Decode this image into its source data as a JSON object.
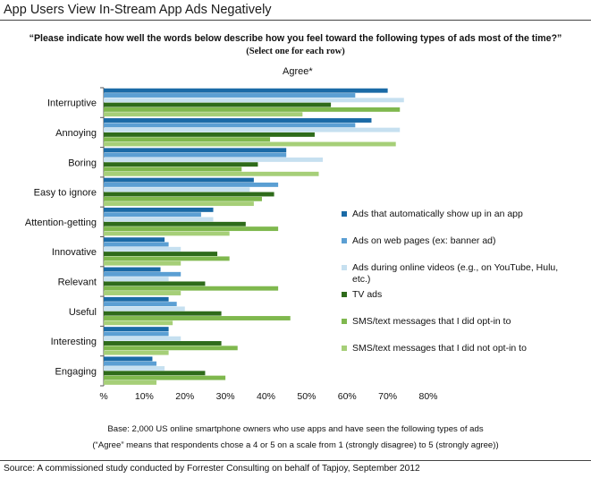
{
  "header": {
    "title": "App Users View In-Stream App Ads Negatively",
    "question": "“Please indicate how well the words below describe how you feel toward the following types of ads most of the time?”",
    "instruction": "(Select one for each row)"
  },
  "chart_data": {
    "type": "bar",
    "orientation": "horizontal",
    "title": "Agree*",
    "categories": [
      "Interruptive",
      "Annoying",
      "Boring",
      "Easy to ignore",
      "Attention-getting",
      "Innovative",
      "Relevant",
      "Useful",
      "Interesting",
      "Engaging"
    ],
    "series": [
      {
        "name": "Ads that automatically show up in an app",
        "color": "#1a6aa6",
        "values": [
          70,
          66,
          45,
          37,
          27,
          15,
          14,
          16,
          16,
          12
        ]
      },
      {
        "name": "Ads on web pages (ex: banner ad)",
        "color": "#5b9fd3",
        "values": [
          62,
          62,
          45,
          43,
          24,
          16,
          19,
          18,
          16,
          13
        ]
      },
      {
        "name": "Ads during online videos (e.g., on YouTube, Hulu, etc.)",
        "color": "#c6e0f0",
        "values": [
          74,
          73,
          54,
          36,
          27,
          19,
          16,
          20,
          19,
          15
        ]
      },
      {
        "name": "TV ads",
        "color": "#2e6b1a",
        "values": [
          56,
          52,
          38,
          42,
          35,
          28,
          25,
          29,
          29,
          25
        ]
      },
      {
        "name": "SMS/text messages that I did opt-in to",
        "color": "#7fb84e",
        "values": [
          73,
          41,
          34,
          39,
          43,
          31,
          43,
          46,
          33,
          30
        ]
      },
      {
        "name": "SMS/text messages that I did not opt-in to",
        "color": "#a6cf78",
        "values": [
          49,
          72,
          53,
          37,
          31,
          19,
          19,
          17,
          16,
          13
        ]
      }
    ],
    "xlim": [
      0,
      80
    ],
    "xticks": [
      "%",
      "10%",
      "20%",
      "30%",
      "40%",
      "50%",
      "60%",
      "70%",
      "80%"
    ],
    "grid": false,
    "legend_position": "right"
  },
  "footer": {
    "base": "Base: 2,000 US online smartphone owners who use apps and have seen the following types of ads",
    "agree_note": "(“Agree” means that respondents chose a 4 or 5 on a scale from 1 (strongly disagree) to 5 (strongly agree))",
    "source": "Source: A commissioned study conducted by Forrester Consulting on behalf of Tapjoy, September 2012"
  }
}
